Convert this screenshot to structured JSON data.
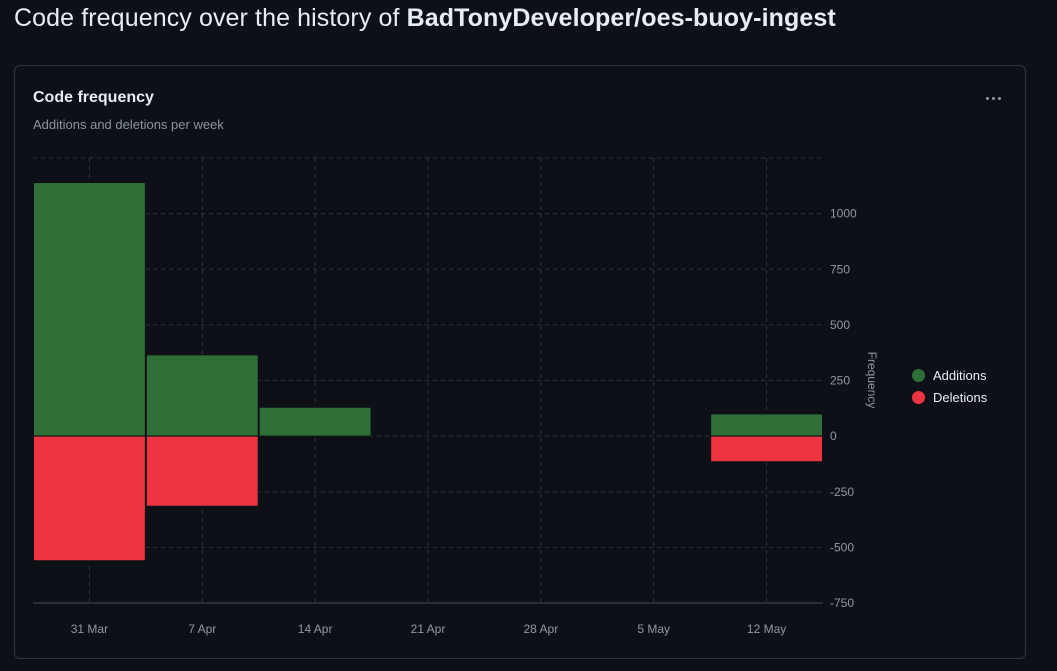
{
  "page": {
    "title_prefix": "Code frequency over the history of",
    "repo": "BadTonyDeveloper/oes-buoy-ingest"
  },
  "card": {
    "title": "Code frequency",
    "subtitle": "Additions and deletions per week",
    "more_icon": "kebab-horizontal-icon"
  },
  "colors": {
    "additions": "#2f6f37",
    "deletions": "#ee3440",
    "grid": "#30363d",
    "axis_text": "#9198a1",
    "background": "#0d1117"
  },
  "chart_data": {
    "type": "bar",
    "title": "Code frequency",
    "subtitle": "Additions and deletions per week",
    "xlabel": "",
    "ylabel": "Frequency",
    "categories": [
      "31 Mar",
      "7 Apr",
      "14 Apr",
      "21 Apr",
      "28 Apr",
      "5 May",
      "12 May"
    ],
    "series": [
      {
        "name": "Additions",
        "values": [
          1140,
          365,
          130,
          0,
          0,
          0,
          100
        ]
      },
      {
        "name": "Deletions",
        "values": [
          -560,
          -315,
          0,
          0,
          0,
          0,
          -115
        ]
      }
    ],
    "yticks": [
      1000,
      750,
      500,
      250,
      0,
      -250,
      -500,
      -750
    ],
    "ytick_labels": [
      "1000",
      "750",
      "500",
      "250",
      "0",
      "-250",
      "-500",
      "-750"
    ],
    "ylim": [
      -750,
      1250
    ],
    "grid": true,
    "legend_position": "right"
  }
}
